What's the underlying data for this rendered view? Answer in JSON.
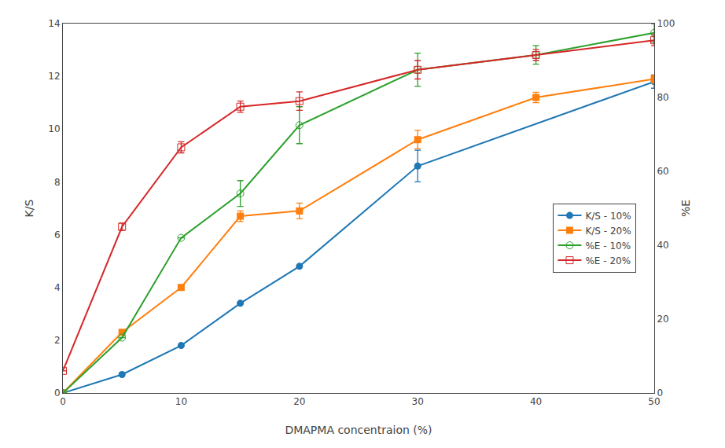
{
  "chart_data": {
    "type": "line",
    "x_label": "DMAPMA concentraion (%)",
    "y_label": "K/S",
    "y2_label": "%E",
    "xlim": [
      0,
      50
    ],
    "xticks": [
      0,
      10,
      20,
      30,
      40,
      50
    ],
    "ylim": [
      0,
      14
    ],
    "yticks": [
      0,
      2,
      4,
      6,
      8,
      10,
      12,
      14
    ],
    "y2lim": [
      0,
      100
    ],
    "y2ticks": [
      0,
      20,
      40,
      60,
      80,
      100
    ],
    "grid": false,
    "legend": "right",
    "series": [
      {
        "name": "K/S - 10%",
        "marker": "circle",
        "axis": "y",
        "x": [
          0,
          5,
          10,
          15,
          20,
          30,
          50
        ],
        "values": [
          0.0,
          0.7,
          1.8,
          3.4,
          4.8,
          8.6,
          11.8
        ],
        "errors": [
          0,
          0,
          0,
          0,
          0,
          0.6,
          0.25
        ]
      },
      {
        "name": "K/S - 20%",
        "marker": "square",
        "axis": "y",
        "x": [
          0,
          5,
          10,
          15,
          20,
          30,
          40,
          50
        ],
        "values": [
          0.0,
          2.3,
          4.0,
          6.7,
          6.9,
          9.6,
          11.2,
          11.9
        ],
        "errors": [
          0,
          0,
          0,
          0.2,
          0.3,
          0.35,
          0.2,
          0.15
        ]
      },
      {
        "name": "%E - 10%",
        "marker": "circle-open",
        "axis": "y2",
        "x": [
          0,
          5,
          10,
          15,
          20,
          30,
          40,
          50
        ],
        "values": [
          0.0,
          15.0,
          42.0,
          54.0,
          72.5,
          87.5,
          91.5,
          97.5
        ],
        "errors": [
          0,
          0,
          0,
          3.5,
          5.0,
          4.5,
          2.5,
          2.5
        ]
      },
      {
        "name": "%E - 20%",
        "marker": "square-open",
        "axis": "y2",
        "x": [
          0,
          5,
          10,
          15,
          20,
          30,
          40,
          50
        ],
        "values": [
          6.0,
          45.0,
          66.5,
          77.5,
          79.0,
          87.5,
          91.5,
          95.5
        ],
        "errors": [
          0,
          1.0,
          1.5,
          1.5,
          2.5,
          2.5,
          1.5,
          1.5
        ]
      }
    ]
  }
}
